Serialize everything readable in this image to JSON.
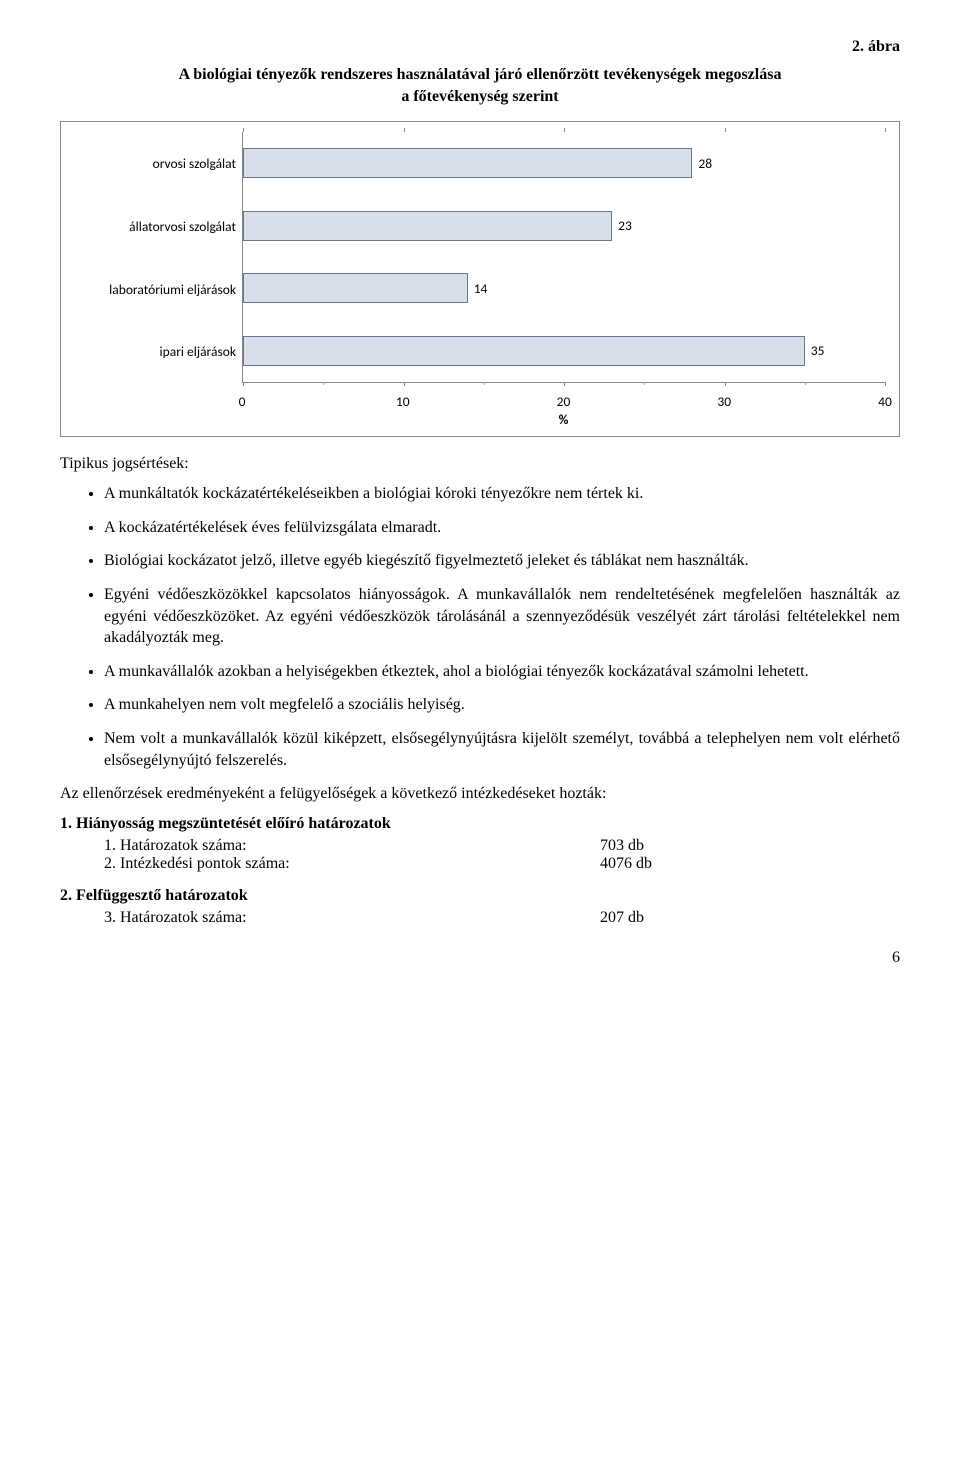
{
  "figure_label": "2. ábra",
  "chart": {
    "type": "bar-horizontal",
    "title_line1": "A biológiai tényezők rendszeres használatával járó ellenőrzött tevékenységek megoszlása",
    "title_line2": "a főtevékenység szerint",
    "categories": [
      "orvosi szolgálat",
      "állatorvosi szolgálat",
      "laboratóriumi eljárások",
      "ipari eljárások"
    ],
    "values": [
      28,
      23,
      14,
      35
    ],
    "bar_color": "#d9dfea",
    "bar_border": "#6b7590",
    "xlim_max": 40,
    "xticks": [
      0,
      10,
      20,
      30,
      40
    ],
    "x_unit": "%",
    "label_fontsize": 13.5,
    "value_fontsize": 13.5,
    "border_color": "#888888",
    "background_color": "#ffffff"
  },
  "section_heading": "Tipikus jogsértések:",
  "bullets": [
    "A munkáltatók kockázatértékeléseikben a biológiai kóroki tényezőkre nem tértek ki.",
    "A kockázatértékelések éves felülvizsgálata elmaradt.",
    "Biológiai kockázatot jelző, illetve egyéb kiegészítő figyelmeztető jeleket és táblákat nem használták.",
    "Egyéni védőeszközökkel kapcsolatos hiányosságok. A munkavállalók nem rendeltetésének megfelelően használták az egyéni védőeszközöket. Az egyéni védőeszközök tárolásánál a szennyeződésük veszélyét zárt tárolási feltételekkel nem akadályozták meg.",
    "A munkavállalók azokban a helyiségekben étkeztek, ahol a biológiai tényezők kockázatával számolni lehetett.",
    "A munkahelyen nem volt megfelelő a szociális helyiség.",
    "Nem volt a munkavállalók közül kiképzett, elsősegélynyújtásra kijelölt személyt, továbbá a telephelyen nem volt elérhető elsősegélynyújtó felszerelés."
  ],
  "outcome_para": "Az ellenőrzések eredményeként a felügyelőségek a következő intézkedéseket hozták:",
  "numbered": [
    {
      "heading": "1. Hiányosság megszüntetését előíró határozatok",
      "items": [
        {
          "n": "1.",
          "label": "Határozatok száma:",
          "value": "703 db"
        },
        {
          "n": "2.",
          "label": "Intézkedési pontok száma:",
          "value": "4076 db"
        }
      ]
    },
    {
      "heading": "2. Felfüggesztő határozatok",
      "items": [
        {
          "n": "3.",
          "label": "Határozatok száma:",
          "value": "207 db"
        }
      ]
    }
  ],
  "page_number": "6"
}
